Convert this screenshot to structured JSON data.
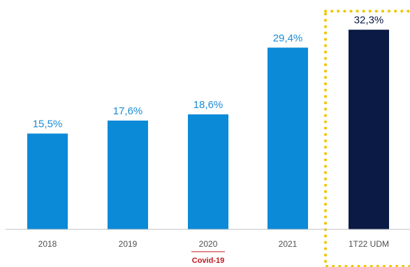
{
  "chart_data": {
    "type": "bar",
    "categories": [
      "2018",
      "2019",
      "2020",
      "2021",
      "1T22 UDM"
    ],
    "values": [
      15.5,
      17.6,
      18.6,
      29.4,
      32.3
    ],
    "data_labels": [
      "15,5%",
      "17,6%",
      "18,6%",
      "29,4%",
      "32,3%"
    ],
    "title": "",
    "xlabel": "",
    "ylabel": "",
    "ylim": [
      0,
      34.4
    ],
    "grid": false,
    "legend": "none",
    "annotations": [
      {
        "category": "2020",
        "text": "Covid-19"
      }
    ],
    "highlight": {
      "category": "1T22 UDM",
      "style": "dotted-box"
    }
  },
  "colors": {
    "bar": "#0b8ad8",
    "bar_highlight": "#0b1a45",
    "label": "#1c8cd6",
    "label_highlight": "#0b1a45",
    "note": "#c0171d",
    "highlight_box": "#f2c500",
    "axis": "#bfbfbf",
    "tick": "#505050"
  }
}
